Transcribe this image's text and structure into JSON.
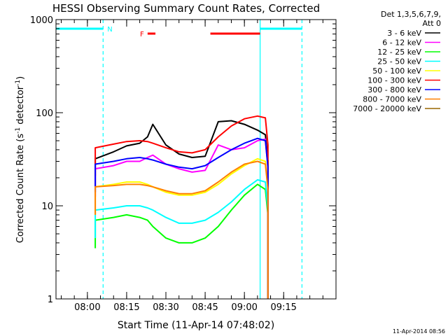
{
  "chart_data": {
    "type": "line",
    "title": "HESSI Observing Summary Count Rates, Corrected",
    "xlabel": "Start Time (11-Apr-14 07:48:02)",
    "ylabel": "Corrected Count Rate (s",
    "ylabel_sup": "-1",
    "ylabel_tail": " detector",
    "ylabel_tail_sup": "-1",
    "ylabel_close": ")",
    "yscale": "log",
    "ylim": [
      1,
      1000
    ],
    "xlim": [
      "07:48",
      "09:35"
    ],
    "x_ticks": [
      "08:00",
      "08:15",
      "08:30",
      "08:45",
      "09:00",
      "09:15"
    ],
    "y_ticks": [
      "1",
      "10",
      "100",
      "1000"
    ],
    "legend_header": [
      "Det 1,3,5,6,7,9,",
      "Att 0"
    ],
    "timestamp": "11-Apr-2014 08:56",
    "flags": [
      {
        "label": "N",
        "color": "#00ffff",
        "segments": [
          [
            "07:48",
            "08:06"
          ],
          [
            "09:06",
            "09:22"
          ]
        ]
      },
      {
        "label": "F",
        "color": "#ff0000",
        "segments": [
          [
            "08:23",
            "08:26"
          ],
          [
            "08:47",
            "09:06"
          ]
        ]
      }
    ],
    "boundaries": [
      {
        "time": "08:06",
        "color": "#00ffff",
        "style": "dashed"
      },
      {
        "time": "09:06",
        "color": "#00ffff",
        "style": "solid"
      },
      {
        "time": "09:22",
        "color": "#00ffff",
        "style": "dashed"
      }
    ],
    "x": [
      "07:48",
      "08:03",
      "08:10",
      "08:15",
      "08:20",
      "08:23",
      "08:25",
      "08:30",
      "08:35",
      "08:40",
      "08:45",
      "08:50",
      "08:55",
      "09:00",
      "09:05",
      "09:08",
      "09:09"
    ],
    "series": [
      {
        "name": "3 - 6 keV",
        "color": "#000000",
        "values": [
          null,
          32,
          38,
          44,
          47,
          55,
          75,
          45,
          36,
          33,
          34,
          80,
          82,
          75,
          65,
          58,
          30
        ]
      },
      {
        "name": "6 - 12 keV",
        "color": "#ff00ff",
        "values": [
          null,
          25,
          27,
          30,
          30,
          33,
          35,
          28,
          25,
          23,
          24,
          45,
          40,
          42,
          50,
          52,
          25
        ]
      },
      {
        "name": "12 - 25 keV",
        "color": "#00ff00",
        "values": [
          null,
          7,
          7.5,
          8,
          7.5,
          7,
          6,
          4.5,
          4,
          4,
          4.5,
          6,
          9,
          13,
          17,
          15,
          8
        ]
      },
      {
        "name": "25 - 50 keV",
        "color": "#00ffff",
        "values": [
          null,
          9,
          9.5,
          10,
          10,
          9.5,
          9,
          7.5,
          6.5,
          6.5,
          7,
          8.5,
          11,
          15,
          19,
          18,
          9
        ]
      },
      {
        "name": "50 - 100 keV",
        "color": "#ffff00",
        "values": [
          null,
          16,
          17,
          18,
          18,
          17,
          16,
          14,
          13,
          13,
          14,
          17,
          22,
          27,
          32,
          30,
          15
        ]
      },
      {
        "name": "100 - 300 keV",
        "color": "#ff0000",
        "values": [
          null,
          42,
          46,
          49,
          50,
          49,
          47,
          42,
          38,
          37,
          40,
          55,
          72,
          86,
          92,
          88,
          45
        ]
      },
      {
        "name": "300 - 800 keV",
        "color": "#0000ff",
        "values": [
          null,
          28,
          30,
          32,
          33,
          32,
          31,
          28,
          26,
          25,
          27,
          33,
          40,
          47,
          53,
          50,
          26
        ]
      },
      {
        "name": "800 - 7000 keV",
        "color": "#ff8000",
        "values": [
          null,
          16,
          16.5,
          17,
          17,
          16.5,
          16,
          14.5,
          13.5,
          13.5,
          14.5,
          18,
          23,
          28,
          30,
          28,
          15
        ]
      },
      {
        "name": "7000 - 20000 keV",
        "color": "#996600",
        "values": [
          null,
          null,
          null,
          null,
          null,
          null,
          null,
          null,
          null,
          null,
          null,
          null,
          null,
          null,
          null,
          null,
          null
        ]
      }
    ],
    "grid": false,
    "legend_position": "right"
  }
}
